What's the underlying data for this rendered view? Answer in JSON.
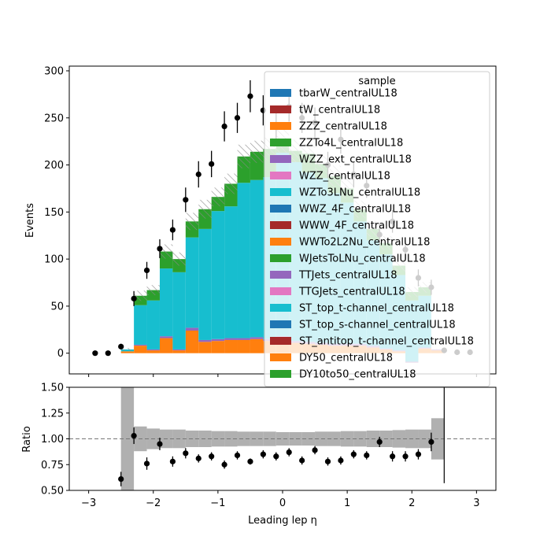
{
  "figure": {
    "xlabel": "Leading lep η"
  },
  "chart_data": [
    {
      "type": "histogram-stacked",
      "ylabel": "Events",
      "ylim": [
        -22,
        305
      ],
      "xlim": [
        -3.3,
        3.3
      ],
      "yticks": [
        0,
        50,
        100,
        150,
        200,
        250,
        300
      ],
      "bins": [
        -2.5,
        -2.3,
        -2.1,
        -1.9,
        -1.7,
        -1.5,
        -1.3,
        -1.1,
        -0.9,
        -0.7,
        -0.5,
        -0.3,
        -0.1,
        0.1,
        0.3,
        0.5,
        0.7,
        0.9,
        1.1,
        1.3,
        1.5,
        1.7,
        1.9,
        2.1,
        2.3,
        2.5
      ],
      "series": [
        {
          "name": "DY10to50_centralUL18",
          "color": "#2ca02c",
          "values": [
            0,
            0,
            0,
            0,
            0,
            0,
            0,
            0,
            0,
            0,
            0,
            0,
            0,
            0,
            0,
            0,
            0,
            0,
            0,
            0,
            0,
            0,
            0,
            0,
            0
          ]
        },
        {
          "name": "DY50_centralUL18",
          "color": "#ff7f0e",
          "values": [
            2,
            8,
            3,
            16,
            3,
            24,
            12,
            13,
            14,
            14,
            15,
            13,
            16,
            11,
            10,
            9,
            8,
            8,
            8,
            6,
            4,
            2,
            -10,
            5,
            3
          ]
        },
        {
          "name": "ST_antitop_t-channel_centralUL18",
          "color": "#a52a2a",
          "values": [
            0,
            0,
            0,
            0,
            0,
            0,
            0,
            0,
            0,
            0,
            0,
            0,
            0,
            0,
            0,
            0,
            0,
            0,
            0,
            0,
            0,
            0,
            0,
            0,
            0
          ]
        },
        {
          "name": "ST_top_s-channel_centralUL18",
          "color": "#1f77b4",
          "values": [
            0,
            0,
            0,
            0,
            0,
            0,
            0,
            0,
            0,
            0,
            0,
            0,
            0,
            0,
            0,
            0,
            0,
            0,
            0,
            0,
            0,
            0,
            0,
            0,
            0
          ]
        },
        {
          "name": "ST_top_t-channel_centralUL18",
          "color": "#17becf",
          "values": [
            0,
            0,
            0,
            0,
            0,
            0,
            0,
            0,
            0,
            0,
            0,
            0,
            0,
            0,
            0,
            0,
            0,
            0,
            0,
            0,
            0,
            0,
            0,
            0,
            0
          ]
        },
        {
          "name": "TTGJets_centralUL18",
          "color": "#e377c2",
          "values": [
            0,
            0,
            0,
            0,
            0,
            0,
            0,
            0,
            0,
            0,
            0,
            0,
            0,
            0,
            0,
            0,
            0,
            0,
            0,
            0,
            0,
            0,
            0,
            0,
            0
          ]
        },
        {
          "name": "TTJets_centralUL18",
          "color": "#9467bd",
          "values": [
            0,
            1,
            1,
            2,
            1,
            3,
            2,
            2,
            2,
            2,
            2,
            2,
            2,
            2,
            2,
            2,
            2,
            2,
            2,
            2,
            1,
            1,
            1,
            1,
            1
          ]
        },
        {
          "name": "WJetsToLNu_centralUL18",
          "color": "#2ca02c",
          "values": [
            0,
            0,
            0,
            0,
            0,
            0,
            0,
            0,
            0,
            0,
            0,
            0,
            0,
            0,
            0,
            0,
            0,
            0,
            0,
            0,
            0,
            0,
            0,
            0,
            0
          ]
        },
        {
          "name": "WWTo2L2Nu_centralUL18",
          "color": "#ff7f0e",
          "values": [
            0,
            0,
            0,
            0,
            0,
            0,
            0,
            0,
            0,
            0,
            0,
            0,
            0,
            0,
            0,
            0,
            0,
            0,
            0,
            0,
            0,
            0,
            0,
            0,
            0
          ]
        },
        {
          "name": "WWW_4F_centralUL18",
          "color": "#a52a2a",
          "values": [
            0,
            0,
            0,
            0,
            0,
            0,
            0,
            0,
            0,
            0,
            0,
            0,
            0,
            0,
            0,
            0,
            0,
            0,
            0,
            0,
            0,
            0,
            0,
            0,
            0
          ]
        },
        {
          "name": "WWZ_4F_centralUL18",
          "color": "#1f77b4",
          "values": [
            0,
            0,
            0,
            0,
            0,
            0,
            0,
            0,
            0,
            0,
            0,
            0,
            0,
            0,
            0,
            0,
            0,
            0,
            0,
            0,
            0,
            0,
            0,
            0,
            0
          ]
        },
        {
          "name": "WZTo3LNu_centralUL18",
          "color": "#17becf",
          "values": [
            2,
            42,
            52,
            72,
            82,
            96,
            118,
            136,
            140,
            165,
            167,
            172,
            195,
            190,
            180,
            175,
            160,
            150,
            130,
            112,
            100,
            80,
            65,
            55,
            0
          ]
        },
        {
          "name": "WZZ_centralUL18",
          "color": "#e377c2",
          "values": [
            0,
            0,
            0,
            0,
            0,
            0,
            0,
            0,
            0,
            0,
            0,
            0,
            0,
            0,
            0,
            0,
            0,
            0,
            0,
            0,
            0,
            0,
            0,
            0,
            0
          ]
        },
        {
          "name": "WZZ_ext_centralUL18",
          "color": "#9467bd",
          "values": [
            0,
            0,
            0,
            0,
            0,
            0,
            0,
            0,
            0,
            0,
            0,
            0,
            0,
            0,
            0,
            0,
            0,
            0,
            0,
            0,
            0,
            0,
            0,
            0,
            0
          ]
        },
        {
          "name": "ZZTo4L_centralUL18",
          "color": "#2ca02c",
          "values": [
            0,
            10,
            11,
            18,
            14,
            17,
            21,
            15,
            24,
            28,
            30,
            30,
            12,
            12,
            20,
            15,
            18,
            15,
            13,
            12,
            12,
            10,
            9,
            9,
            0
          ]
        },
        {
          "name": "ZZZ_centralUL18",
          "color": "#ff7f0e",
          "values": [
            0,
            0,
            0,
            0,
            0,
            0,
            0,
            0,
            0,
            0,
            0,
            0,
            0,
            0,
            0,
            0,
            0,
            0,
            0,
            0,
            0,
            0,
            0,
            0,
            0
          ]
        },
        {
          "name": "tW_centralUL18",
          "color": "#a52a2a",
          "values": [
            0,
            0,
            0,
            0,
            0,
            0,
            0,
            0,
            0,
            0,
            0,
            0,
            0,
            0,
            0,
            0,
            0,
            0,
            0,
            0,
            0,
            0,
            0,
            0,
            0
          ]
        },
        {
          "name": "tbarW_centralUL18",
          "color": "#1f77b4",
          "values": [
            0,
            0,
            0,
            0,
            0,
            0,
            0,
            0,
            0,
            0,
            0,
            0,
            0,
            0,
            0,
            0,
            0,
            0,
            0,
            0,
            0,
            0,
            0,
            0,
            0
          ]
        }
      ],
      "uncertainty_band": {
        "hatch": true,
        "rel": [
          0.4,
          0.09,
          0.08,
          0.07,
          0.07,
          0.065,
          0.065,
          0.06,
          0.06,
          0.06,
          0.055,
          0.055,
          0.055,
          0.055,
          0.055,
          0.055,
          0.06,
          0.06,
          0.06,
          0.065,
          0.065,
          0.07,
          0.08,
          0.08,
          0.1
        ]
      },
      "data_points": {
        "x": [
          -2.9,
          -2.7,
          -2.5,
          -2.3,
          -2.1,
          -1.9,
          -1.7,
          -1.5,
          -1.3,
          -1.1,
          -0.9,
          -0.7,
          -0.5,
          -0.3,
          -0.1,
          0.1,
          0.3,
          0.5,
          0.7,
          0.9,
          1.1,
          1.3,
          1.5,
          1.7,
          1.9,
          2.1,
          2.3,
          2.5,
          2.7,
          2.9
        ],
        "y": [
          0,
          0,
          7,
          58,
          88,
          111,
          131,
          163,
          190,
          201,
          241,
          250,
          273,
          258,
          240,
          262,
          250,
          245,
          200,
          227,
          190,
          178,
          126,
          140,
          110,
          80,
          70,
          3,
          1,
          1
        ],
        "err": [
          0,
          0,
          3,
          8,
          9,
          10,
          11,
          13,
          14,
          14,
          16,
          16,
          17,
          16,
          16,
          16,
          16,
          16,
          14,
          15,
          14,
          13,
          11,
          12,
          10,
          9,
          8,
          2,
          1,
          1
        ]
      },
      "legend": {
        "title": "sample",
        "placement": "upper-right"
      }
    },
    {
      "type": "ratio",
      "ylabel": "Ratio",
      "ylim": [
        0.5,
        1.5
      ],
      "yticks": [
        0.5,
        0.75,
        1.0,
        1.25,
        1.5
      ],
      "ytick_labels": [
        "0.50",
        "0.75",
        "1.00",
        "1.25",
        "1.50"
      ],
      "xticks": [
        -3,
        -2,
        -1,
        0,
        1,
        2,
        3
      ],
      "band": {
        "x_edges": [
          -2.5,
          -2.3,
          -2.1,
          -1.9,
          -1.7,
          -1.5,
          -1.3,
          -1.1,
          -0.9,
          -0.7,
          -0.5,
          -0.3,
          -0.1,
          0.1,
          0.3,
          0.5,
          0.7,
          0.9,
          1.1,
          1.3,
          1.5,
          1.7,
          1.9,
          2.1,
          2.3,
          2.5
        ],
        "half_width": [
          0.9,
          0.12,
          0.1,
          0.09,
          0.09,
          0.08,
          0.08,
          0.075,
          0.075,
          0.07,
          0.07,
          0.07,
          0.065,
          0.065,
          0.065,
          0.07,
          0.07,
          0.075,
          0.075,
          0.08,
          0.08,
          0.085,
          0.09,
          0.09,
          0.2
        ]
      },
      "reference": 1.0,
      "points": {
        "x": [
          -2.5,
          -2.3,
          -2.1,
          -1.9,
          -1.7,
          -1.5,
          -1.3,
          -1.1,
          -0.9,
          -0.7,
          -0.5,
          -0.3,
          -0.1,
          0.1,
          0.3,
          0.5,
          0.7,
          0.9,
          1.1,
          1.3,
          1.5,
          1.7,
          1.9,
          2.1,
          2.3
        ],
        "y": [
          0.61,
          1.03,
          0.76,
          0.95,
          0.78,
          0.86,
          0.81,
          0.83,
          0.75,
          0.84,
          0.78,
          0.85,
          0.83,
          0.87,
          0.79,
          0.89,
          0.78,
          0.79,
          0.85,
          0.84,
          0.97,
          0.83,
          0.83,
          0.85,
          0.97
        ],
        "err": [
          0.07,
          0.08,
          0.06,
          0.06,
          0.05,
          0.05,
          0.04,
          0.04,
          0.04,
          0.04,
          0.03,
          0.04,
          0.04,
          0.04,
          0.04,
          0.04,
          0.04,
          0.04,
          0.04,
          0.04,
          0.05,
          0.05,
          0.05,
          0.05,
          0.09
        ]
      },
      "vline_x": 2.5
    }
  ]
}
